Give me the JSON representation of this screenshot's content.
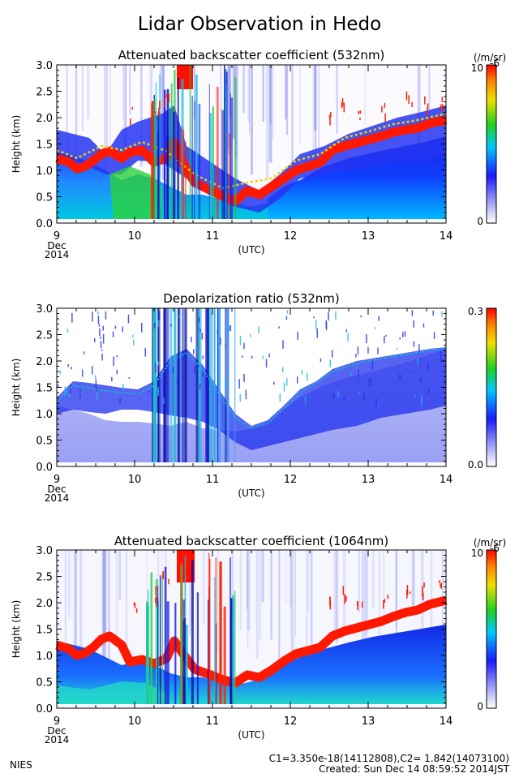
{
  "page": {
    "title": "Lidar Observation in Hedo",
    "footer_left": "NIES",
    "footer_line1": "C1=3.350e-18(14112808),C2= 1.842(14073100)",
    "footer_line2": "Created: Sun Dec 14 08:59:52 2014JST"
  },
  "chart_data": [
    {
      "type": "heatmap",
      "title": "Attenuated backscatter coefficient (532nm)",
      "xlabel": "(UTC)",
      "ylabel": "Height (km)",
      "x_ticks": [
        "9",
        "10",
        "11",
        "12",
        "13",
        "14"
      ],
      "x_tick_extra": [
        "Dec",
        "2014"
      ],
      "xlim": [
        9,
        14
      ],
      "y_ticks": [
        "0.0",
        "0.5",
        "1.0",
        "1.5",
        "2.0",
        "2.5",
        "3.0"
      ],
      "ylim": [
        0,
        3
      ],
      "colorbar": {
        "min_label": "0",
        "max_label": "10",
        "max_exp": "-6",
        "unit": "(/m/sr)"
      },
      "cloud_base_km": [
        {
          "x": 9.0,
          "y": 1.3
        },
        {
          "x": 9.2,
          "y": 1.1
        },
        {
          "x": 9.5,
          "y": 1.3
        },
        {
          "x": 9.8,
          "y": 1.2
        },
        {
          "x": 10.2,
          "y": 1.1
        },
        {
          "x": 10.5,
          "y": 1.3
        },
        {
          "x": 10.7,
          "y": 2.8
        },
        {
          "x": 11.0,
          "y": 0.7
        },
        {
          "x": 11.4,
          "y": 0.55
        },
        {
          "x": 11.8,
          "y": 0.75
        },
        {
          "x": 12.2,
          "y": 1.05
        },
        {
          "x": 12.6,
          "y": 1.3
        },
        {
          "x": 13.0,
          "y": 1.5
        },
        {
          "x": 13.5,
          "y": 1.65
        },
        {
          "x": 14.0,
          "y": 1.85
        }
      ]
    },
    {
      "type": "heatmap",
      "title": "Depolarization ratio (532nm)",
      "xlabel": "(UTC)",
      "ylabel": "Height (km)",
      "x_ticks": [
        "9",
        "10",
        "11",
        "12",
        "13",
        "14"
      ],
      "x_tick_extra": [
        "Dec",
        "2014"
      ],
      "xlim": [
        9,
        14
      ],
      "y_ticks": [
        "0.0",
        "0.5",
        "1.0",
        "1.5",
        "2.0",
        "2.5",
        "3.0"
      ],
      "ylim": [
        0,
        3
      ],
      "colorbar": {
        "min_label": "0.0",
        "max_label": "0.3"
      }
    },
    {
      "type": "heatmap",
      "title": "Attenuated backscatter coefficient (1064nm)",
      "xlabel": "(UTC)",
      "ylabel": "Height (km)",
      "x_ticks": [
        "9",
        "10",
        "11",
        "12",
        "13",
        "14"
      ],
      "x_tick_extra": [
        "Dec",
        "2014"
      ],
      "xlim": [
        9,
        14
      ],
      "y_ticks": [
        "0.0",
        "0.5",
        "1.0",
        "1.5",
        "2.0",
        "2.5",
        "3.0"
      ],
      "ylim": [
        0,
        3
      ],
      "colorbar": {
        "min_label": "0",
        "max_label": "10",
        "max_exp": "-6",
        "unit": "(/m/sr)"
      }
    }
  ],
  "colors": {
    "high": "#ff1a00",
    "mid_yellow": "#f0e000",
    "mid_green": "#1ed21e",
    "cyan": "#00d6e0",
    "blue": "#1a2aff",
    "low": "#b0b4f4"
  }
}
